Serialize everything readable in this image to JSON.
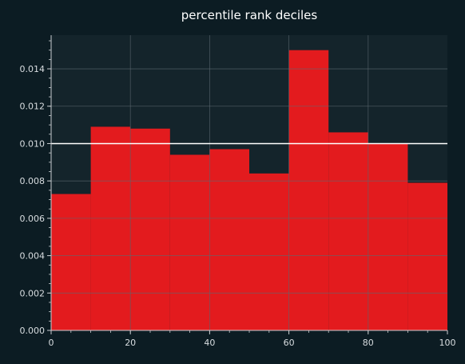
{
  "chart_data": {
    "type": "bar",
    "title": "percentile rank deciles",
    "xlabel": "",
    "ylabel": "",
    "bin_edges": [
      0,
      10,
      20,
      30,
      40,
      50,
      60,
      70,
      80,
      90,
      100
    ],
    "values": [
      0.0073,
      0.0109,
      0.0108,
      0.0094,
      0.0097,
      0.0084,
      0.015,
      0.0106,
      0.01,
      0.0079
    ],
    "reference_line": 0.01,
    "xlim": [
      0,
      100
    ],
    "ylim": [
      0,
      0.0158
    ],
    "x_ticks": [
      0,
      20,
      40,
      60,
      80,
      100
    ],
    "x_tick_labels": [
      "0",
      "20",
      "40",
      "60",
      "80",
      "100"
    ],
    "y_ticks": [
      0.0,
      0.002,
      0.004,
      0.006,
      0.008,
      0.01,
      0.012,
      0.014
    ],
    "y_tick_labels": [
      "0.000",
      "0.002",
      "0.004",
      "0.006",
      "0.008",
      "0.010",
      "0.012",
      "0.014"
    ],
    "x_minor_step": 5,
    "y_minor_step": 0.0005,
    "grid": true,
    "colors": {
      "background": "#0c1c23",
      "plot_background": "#14242b",
      "bar": "#e31b1e",
      "reference_line": "#ffffff",
      "grid": "#5c6a70",
      "axis": "#c8cdd0",
      "text": "#d8dde0",
      "title": "#ffffff"
    }
  }
}
